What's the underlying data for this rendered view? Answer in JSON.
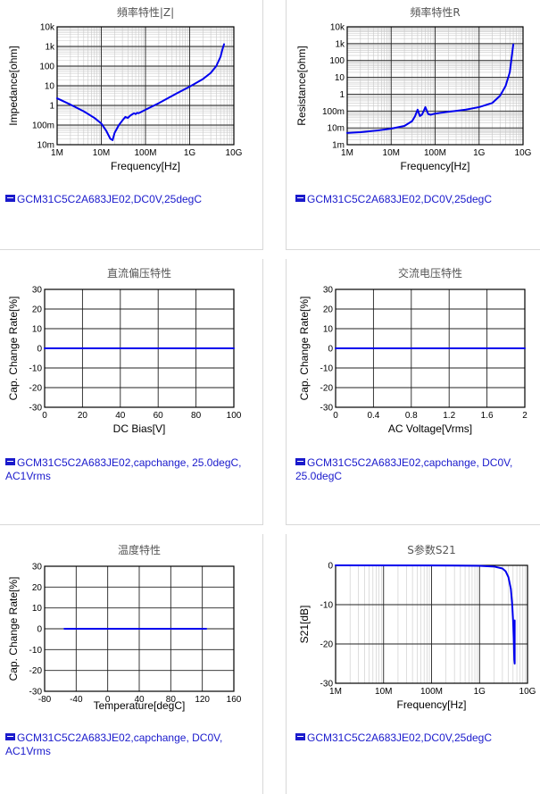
{
  "chart_data": [
    {
      "id": "impedance",
      "type": "line",
      "title": "頻率特性|Z|",
      "xlabel": "Frequency[Hz]",
      "ylabel": "Impedance[ohm]",
      "xscale": "log",
      "yscale": "log",
      "xlim": [
        1000000,
        10000000000
      ],
      "ylim": [
        0.01,
        10000
      ],
      "xticks": [
        1000000,
        10000000,
        100000000,
        1000000000,
        10000000000
      ],
      "xtick_labels": [
        "1M",
        "10M",
        "100M",
        "1G",
        "10G"
      ],
      "yticks": [
        0.01,
        0.1,
        1,
        10,
        100,
        1000,
        10000
      ],
      "ytick_labels": [
        "10m",
        "100m",
        "1",
        "10",
        "100",
        "1k",
        "10k"
      ],
      "grid": true,
      "series": [
        {
          "name": "GCM31C5C2A683JE02,DC0V,25degC",
          "color": "#0000ee",
          "x": [
            1000000,
            2000000,
            4000000,
            7000000,
            10000000,
            13000000,
            16000000,
            18000000,
            20000000,
            25000000,
            30000000,
            35000000,
            40000000,
            45000000,
            50000000,
            55000000,
            60000000,
            65000000,
            70000000,
            100000000,
            200000000,
            500000000,
            1000000000,
            2000000000,
            3000000000,
            4000000000,
            5000000000,
            5500000000,
            6000000000
          ],
          "y": [
            2.3,
            1.1,
            0.5,
            0.23,
            0.12,
            0.05,
            0.02,
            0.017,
            0.04,
            0.1,
            0.17,
            0.26,
            0.23,
            0.3,
            0.35,
            0.4,
            0.36,
            0.42,
            0.4,
            0.6,
            1.3,
            4,
            9,
            22,
            45,
            100,
            300,
            700,
            1300
          ]
        }
      ]
    },
    {
      "id": "resistance",
      "type": "line",
      "title": "頻率特性R",
      "xlabel": "Frequency[Hz]",
      "ylabel": "Resistance[ohm]",
      "xscale": "log",
      "yscale": "log",
      "xlim": [
        1000000,
        10000000000
      ],
      "ylim": [
        0.001,
        10000
      ],
      "xticks": [
        1000000,
        10000000,
        100000000,
        1000000000,
        10000000000
      ],
      "xtick_labels": [
        "1M",
        "10M",
        "100M",
        "1G",
        "10G"
      ],
      "yticks": [
        0.001,
        0.01,
        0.1,
        1,
        10,
        100,
        1000,
        10000
      ],
      "ytick_labels": [
        "1m",
        "10m",
        "100m",
        "1",
        "10",
        "100",
        "1k",
        "10k"
      ],
      "grid": true,
      "series": [
        {
          "name": "GCM31C5C2A683JE02,DC0V,25degC",
          "color": "#0000ee",
          "x": [
            1000000,
            2000000,
            5000000,
            10000000,
            20000000,
            30000000,
            35000000,
            40000000,
            45000000,
            50000000,
            55000000,
            60000000,
            65000000,
            70000000,
            80000000,
            100000000,
            200000000,
            500000000,
            1000000000,
            2000000000,
            3000000000,
            4000000000,
            5000000000,
            5500000000,
            6000000000
          ],
          "y": [
            0.005,
            0.0055,
            0.007,
            0.009,
            0.013,
            0.025,
            0.05,
            0.12,
            0.05,
            0.06,
            0.1,
            0.17,
            0.1,
            0.065,
            0.06,
            0.07,
            0.09,
            0.12,
            0.17,
            0.3,
            0.8,
            3,
            20,
            150,
            900
          ]
        }
      ]
    },
    {
      "id": "dcbias",
      "type": "line",
      "title": "直流偏压特性",
      "xlabel": "DC Bias[V]",
      "ylabel": "Cap. Change Rate[%]",
      "xlim": [
        0,
        100
      ],
      "ylim": [
        -30,
        30
      ],
      "xticks": [
        0,
        20,
        40,
        60,
        80,
        100
      ],
      "xtick_labels": [
        "0",
        "20",
        "40",
        "60",
        "80",
        "100"
      ],
      "yticks": [
        -30,
        -20,
        -10,
        0,
        10,
        20,
        30
      ],
      "ytick_labels": [
        "-30",
        "-20",
        "-10",
        "0",
        "10",
        "20",
        "30"
      ],
      "grid": true,
      "series": [
        {
          "name": "GCM31C5C2A683JE02,capchange, 25.0degC, AC1Vrms",
          "color": "#0000ee",
          "x": [
            0,
            100
          ],
          "y": [
            0,
            0
          ]
        }
      ]
    },
    {
      "id": "acvoltage",
      "type": "line",
      "title": "交流电压特性",
      "xlabel": "AC Voltage[Vrms]",
      "ylabel": "Cap. Change Rate[%]",
      "xlim": [
        0,
        2
      ],
      "ylim": [
        -30,
        30
      ],
      "xticks": [
        0,
        0.4,
        0.8,
        1.2,
        1.6,
        2
      ],
      "xtick_labels": [
        "0",
        "0.4",
        "0.8",
        "1.2",
        "1.6",
        "2"
      ],
      "yticks": [
        -30,
        -20,
        -10,
        0,
        10,
        20,
        30
      ],
      "ytick_labels": [
        "-30",
        "-20",
        "-10",
        "0",
        "10",
        "20",
        "30"
      ],
      "grid": true,
      "series": [
        {
          "name": "GCM31C5C2A683JE02,capchange, DC0V, 25.0degC",
          "color": "#0000ee",
          "x": [
            0,
            2
          ],
          "y": [
            0,
            0
          ]
        }
      ]
    },
    {
      "id": "temperature",
      "type": "line",
      "title": "温度特性",
      "xlabel": "Temperature[degC]",
      "ylabel": "Cap. Change Rate[%]",
      "xlim": [
        -80,
        160
      ],
      "ylim": [
        -30,
        30
      ],
      "xticks": [
        -80,
        -40,
        0,
        40,
        80,
        120,
        160
      ],
      "xtick_labels": [
        "-80",
        "-40",
        "0",
        "40",
        "80",
        "120",
        "160"
      ],
      "yticks": [
        -30,
        -20,
        -10,
        0,
        10,
        20,
        30
      ],
      "ytick_labels": [
        "-30",
        "-20",
        "-10",
        "0",
        "10",
        "20",
        "30"
      ],
      "grid": true,
      "series": [
        {
          "name": "GCM31C5C2A683JE02,capchange, DC0V, AC1Vrms",
          "color": "#0000ee",
          "x": [
            -55,
            125
          ],
          "y": [
            0,
            0
          ]
        }
      ]
    },
    {
      "id": "s21",
      "type": "line",
      "title": "S参数S21",
      "xlabel": "Frequency[Hz]",
      "ylabel": "S21[dB]",
      "xscale": "log",
      "xlim": [
        1000000,
        10000000000
      ],
      "ylim": [
        -30,
        0
      ],
      "xticks": [
        1000000,
        10000000,
        100000000,
        1000000000,
        10000000000
      ],
      "xtick_labels": [
        "1M",
        "10M",
        "100M",
        "1G",
        "10G"
      ],
      "yticks": [
        -30,
        -20,
        -10,
        0
      ],
      "ytick_labels": [
        "-30",
        "-20",
        "-10",
        "0"
      ],
      "grid": true,
      "series": [
        {
          "name": "GCM31C5C2A683JE02,DC0V,25degC",
          "color": "#0000ee",
          "x": [
            1000000,
            100000000,
            1000000000,
            2000000000,
            3000000000,
            3500000000,
            4000000000,
            4500000000,
            4800000000,
            5000000000,
            5200000000,
            5300000000,
            5400000000,
            5400000000
          ],
          "y": [
            0,
            -0.02,
            -0.1,
            -0.3,
            -0.8,
            -1.5,
            -3,
            -6,
            -10,
            -14,
            -20,
            -24,
            -25,
            -14
          ]
        }
      ]
    }
  ]
}
